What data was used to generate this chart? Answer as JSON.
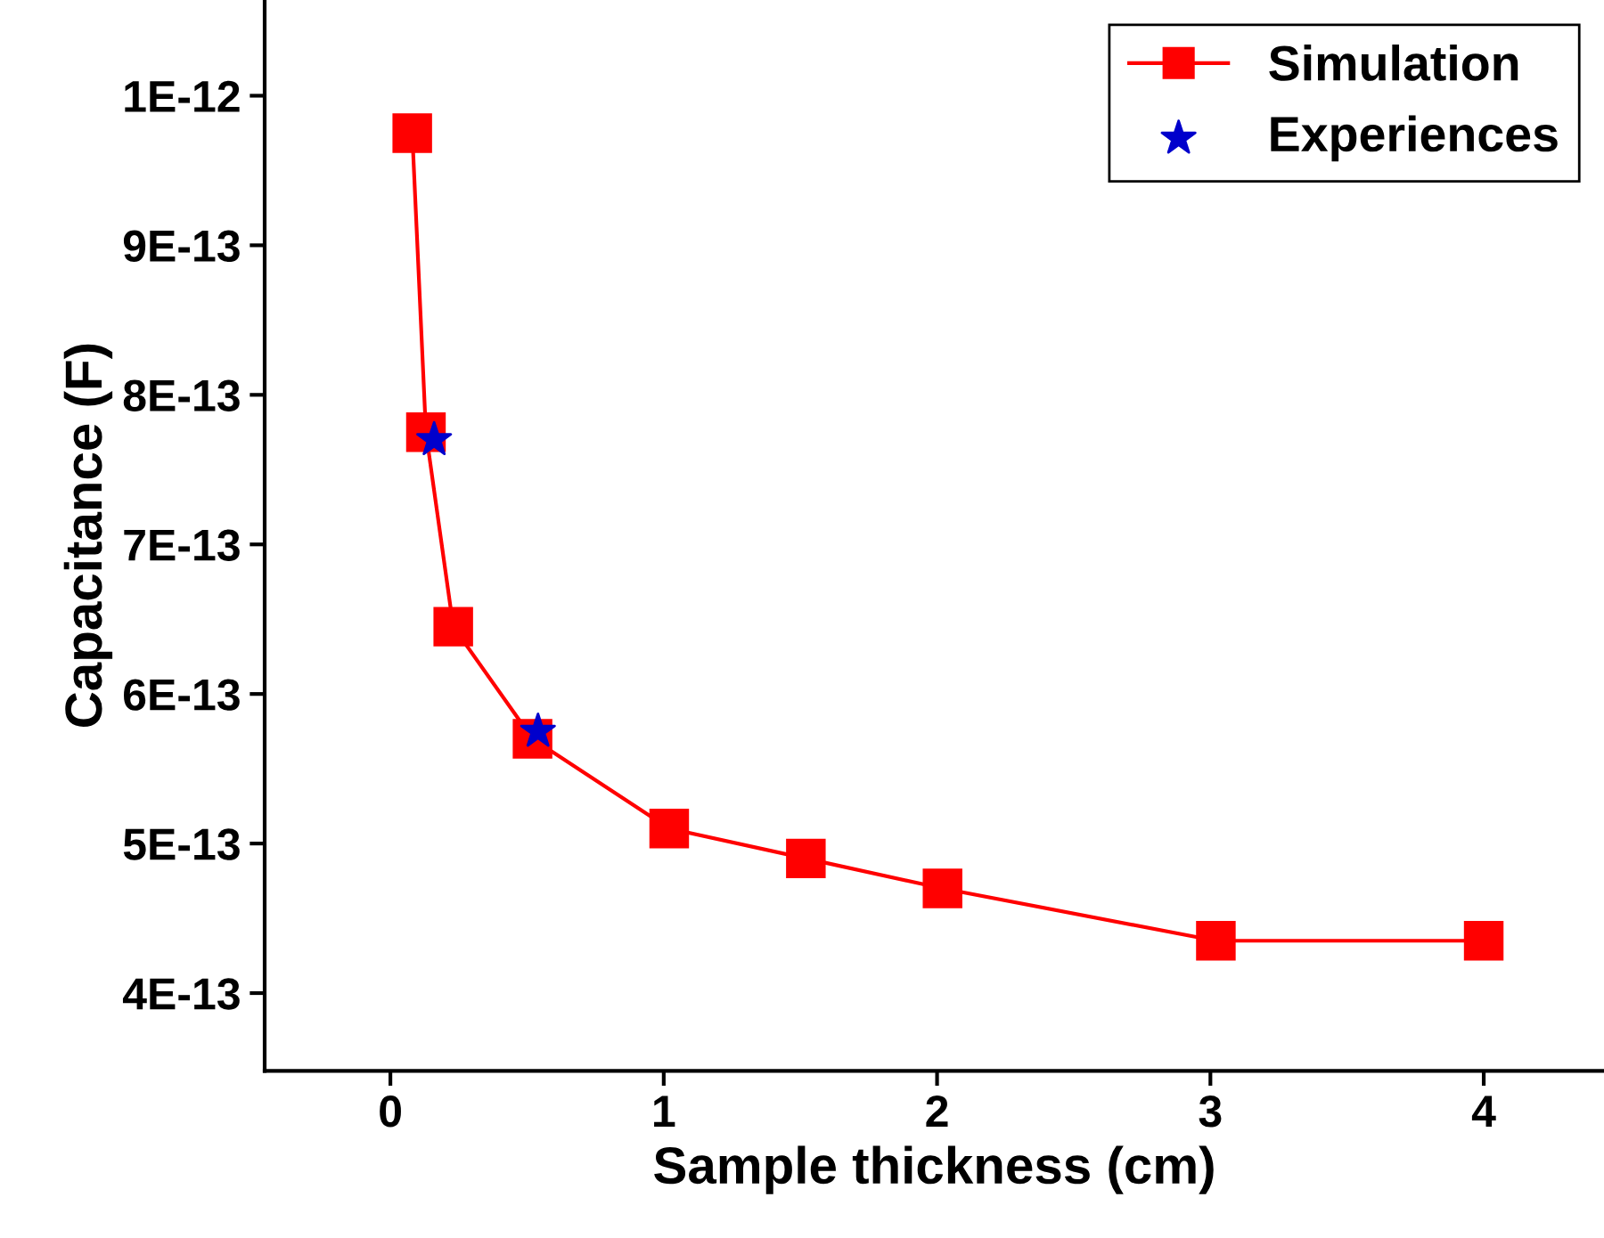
{
  "chart_data": {
    "type": "line",
    "xlabel": "Sample thickness (cm)",
    "ylabel": "Capacitance (F)",
    "xlim": [
      -0.46,
      4.44
    ],
    "xticks": [
      0,
      1,
      2,
      3,
      4
    ],
    "ylim": [
      3.48e-13,
      1.064e-12
    ],
    "yticks": [
      {
        "value": 4e-13,
        "label": "4E-13"
      },
      {
        "value": 5e-13,
        "label": "5E-13"
      },
      {
        "value": 6e-13,
        "label": "6E-13"
      },
      {
        "value": 7e-13,
        "label": "7E-13"
      },
      {
        "value": 8e-13,
        "label": "8E-13"
      },
      {
        "value": 9e-13,
        "label": "9E-13"
      },
      {
        "value": 1e-12,
        "label": "1E-12"
      }
    ],
    "grid": false,
    "legend": "top right",
    "series": [
      {
        "name": "Simulation",
        "color": "#ff0000",
        "marker": "square",
        "x": [
          0.08,
          0.13,
          0.23,
          0.52,
          1.02,
          1.52,
          2.02,
          3.02,
          4.0
        ],
        "values": [
          9.75e-13,
          7.75e-13,
          6.45e-13,
          5.7e-13,
          5.1e-13,
          4.9e-13,
          4.7e-13,
          4.35e-13,
          4.35e-13
        ]
      },
      {
        "name": "Experiences",
        "type": "scatter",
        "color": "#0000cc",
        "marker": "star",
        "x": [
          0.16,
          0.54
        ],
        "values": [
          7.7e-13,
          5.75e-13
        ]
      }
    ]
  }
}
